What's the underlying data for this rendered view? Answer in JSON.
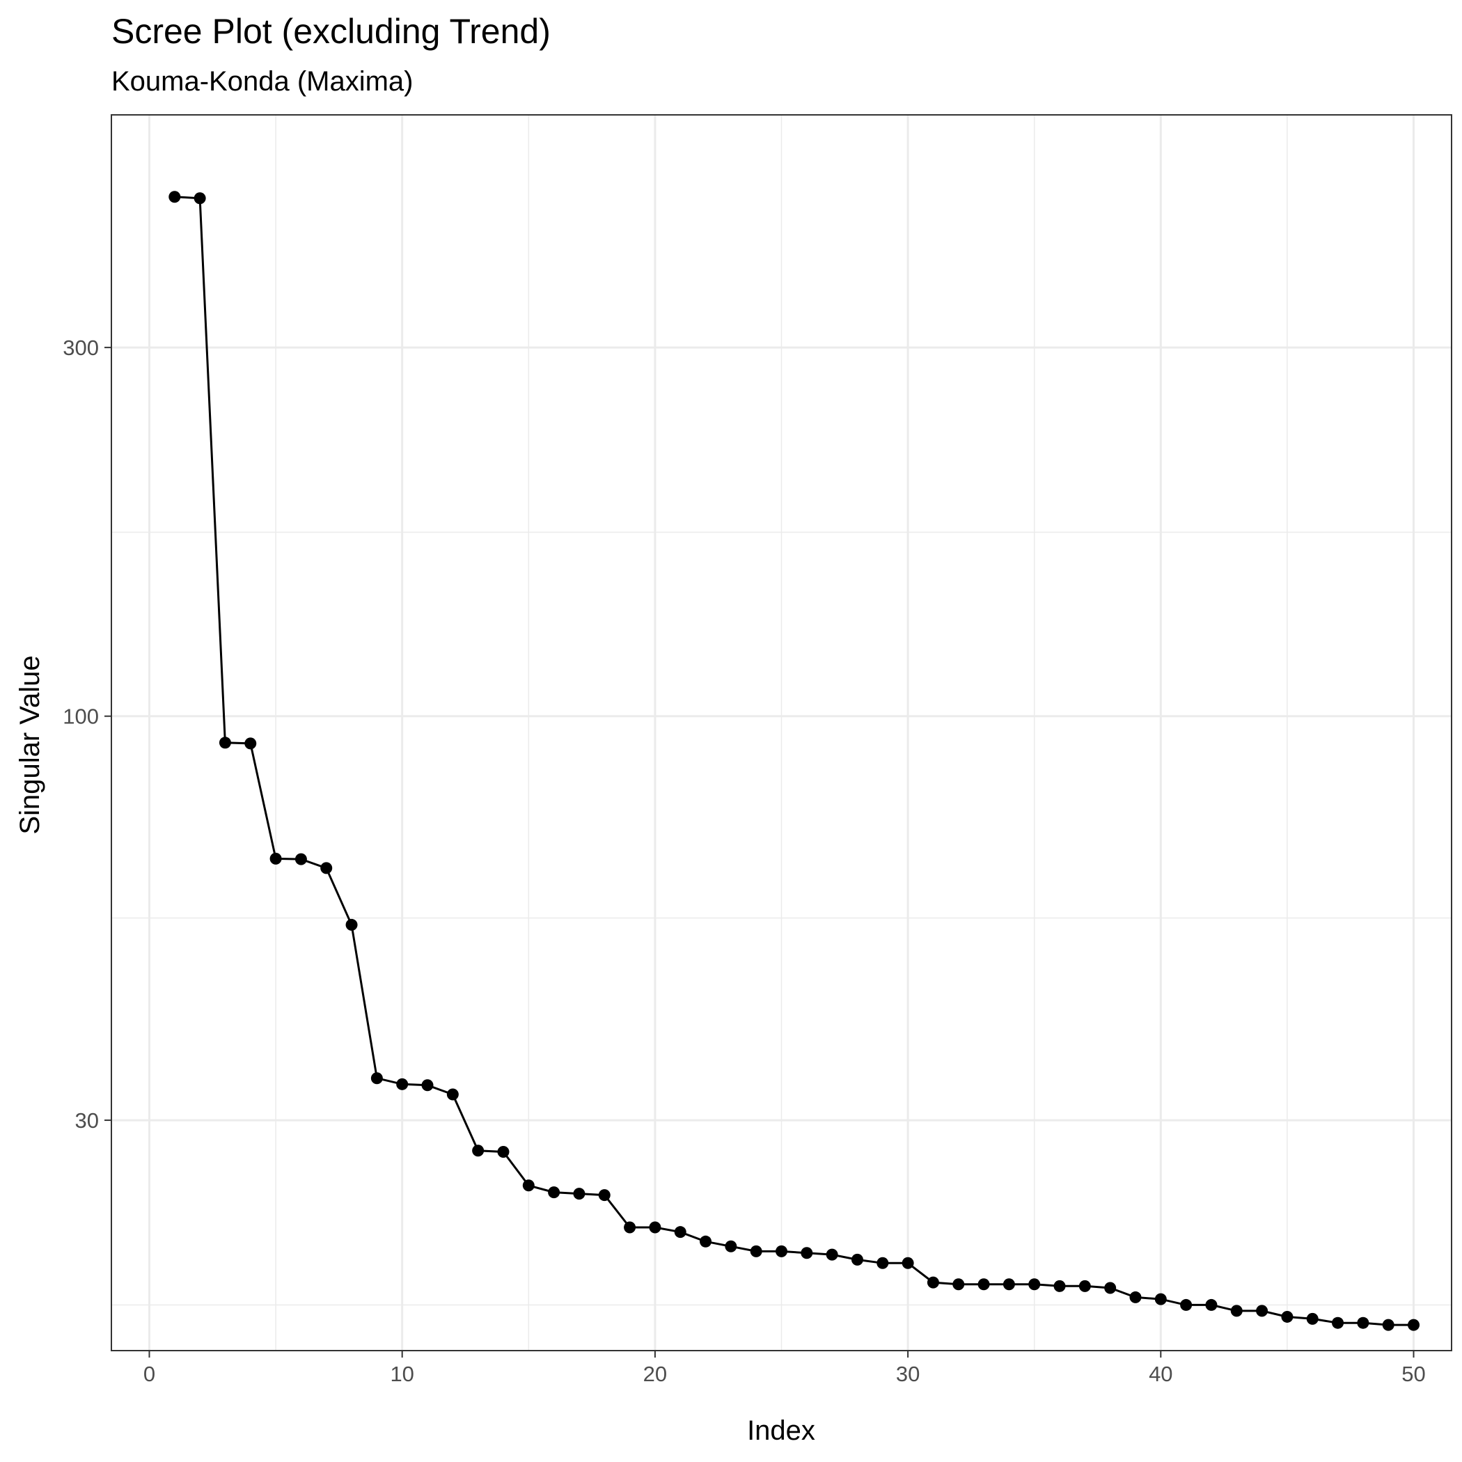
{
  "chart_data": {
    "type": "line",
    "title": "Scree Plot (excluding Trend)",
    "subtitle": "Kouma-Konda (Maxima)",
    "xlabel": "Index",
    "ylabel": "Singular Value",
    "x_scale": "linear",
    "y_scale": "log10",
    "xlim": [
      -1.5,
      51.5
    ],
    "ylim": [
      15.1,
      600
    ],
    "x_ticks": [
      0,
      10,
      20,
      30,
      40,
      50
    ],
    "x_tick_labels": [
      "0",
      "10",
      "20",
      "30",
      "40",
      "50"
    ],
    "y_ticks": [
      30,
      100,
      300
    ],
    "y_tick_labels": [
      "30",
      "100",
      "300"
    ],
    "y_minor_gridlines": [
      17.3,
      54.8,
      173
    ],
    "x_minor_gridlines": [
      5,
      15,
      25,
      35,
      45
    ],
    "grid": true,
    "legend": "none",
    "line_color": "#000000",
    "point_color": "#000000",
    "gridline_color": "#ebebeb",
    "series": [
      {
        "x": [
          1,
          2,
          3,
          4,
          5,
          6,
          7,
          8,
          9,
          10,
          11,
          12,
          13,
          14,
          15,
          16,
          17,
          18,
          19,
          20,
          21,
          22,
          23,
          24,
          25,
          26,
          27,
          28,
          29,
          30,
          31,
          32,
          33,
          34,
          35,
          36,
          37,
          38,
          39,
          40,
          41,
          42,
          43,
          44,
          45,
          46,
          47,
          48,
          49,
          50
        ],
        "y": [
          470,
          468,
          92.4,
          92.2,
          65.4,
          65.3,
          63.6,
          53.7,
          34.0,
          33.4,
          33.3,
          32.4,
          27.4,
          27.3,
          24.7,
          24.2,
          24.1,
          24.0,
          21.8,
          21.8,
          21.5,
          20.9,
          20.6,
          20.3,
          20.3,
          20.2,
          20.1,
          19.8,
          19.6,
          19.6,
          18.5,
          18.4,
          18.4,
          18.4,
          18.4,
          18.3,
          18.3,
          18.2,
          17.7,
          17.6,
          17.3,
          17.3,
          17.0,
          17.0,
          16.7,
          16.6,
          16.4,
          16.4,
          16.3,
          16.3
        ]
      }
    ]
  }
}
